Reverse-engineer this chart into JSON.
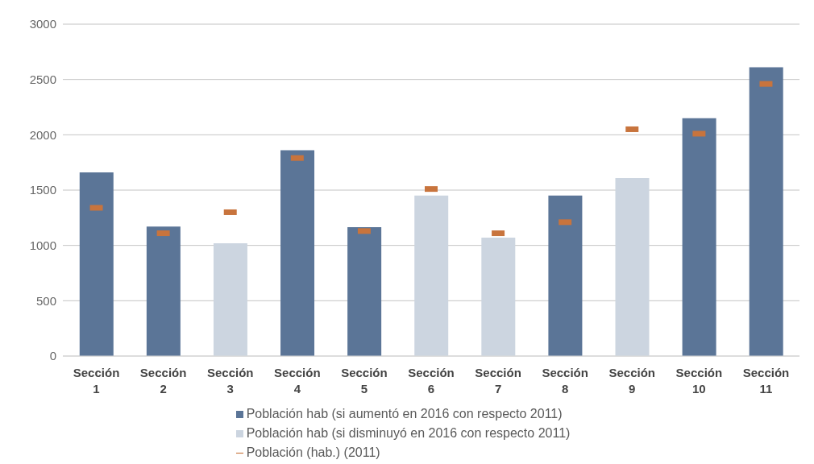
{
  "chart_data": {
    "type": "bar",
    "categories": [
      "Sección 1",
      "Sección 2",
      "Sección 3",
      "Sección 4",
      "Sección 5",
      "Sección 6",
      "Sección 7",
      "Sección 8",
      "Sección 9",
      "Sección 10",
      "Sección 11"
    ],
    "series": [
      {
        "name": "Población hab (si aumentó en 2016 con respecto 2011)",
        "color": "#5b7597",
        "values": [
          1660,
          1170,
          null,
          1860,
          1165,
          null,
          null,
          1450,
          null,
          2150,
          2610
        ]
      },
      {
        "name": "Población hab (si disminuyó en 2016 con respecto 2011)",
        "color": "#ccd5e0",
        "values": [
          null,
          null,
          1020,
          null,
          null,
          1450,
          1070,
          null,
          1610,
          null,
          null
        ]
      },
      {
        "name": "Población (hab.) (2011)",
        "type": "scatter",
        "color": "#c8743d",
        "x": [
          "Sección 1",
          "Sección 2",
          "Sección 3",
          "Sección 4",
          "Sección 5",
          "Sección 6",
          "Sección 7",
          "Sección 8",
          "Sección 9",
          "Sección 10",
          "Sección 11"
        ],
        "values": [
          1340,
          1110,
          1300,
          1790,
          1130,
          1510,
          1110,
          1210,
          2050,
          2010,
          2460
        ]
      }
    ],
    "stacked": true,
    "marker": "square",
    "ylim": [
      0,
      3000
    ],
    "yticks": [
      0,
      500,
      1000,
      1500,
      2000,
      2500,
      3000
    ],
    "grid": "y",
    "legend": "bottom"
  }
}
